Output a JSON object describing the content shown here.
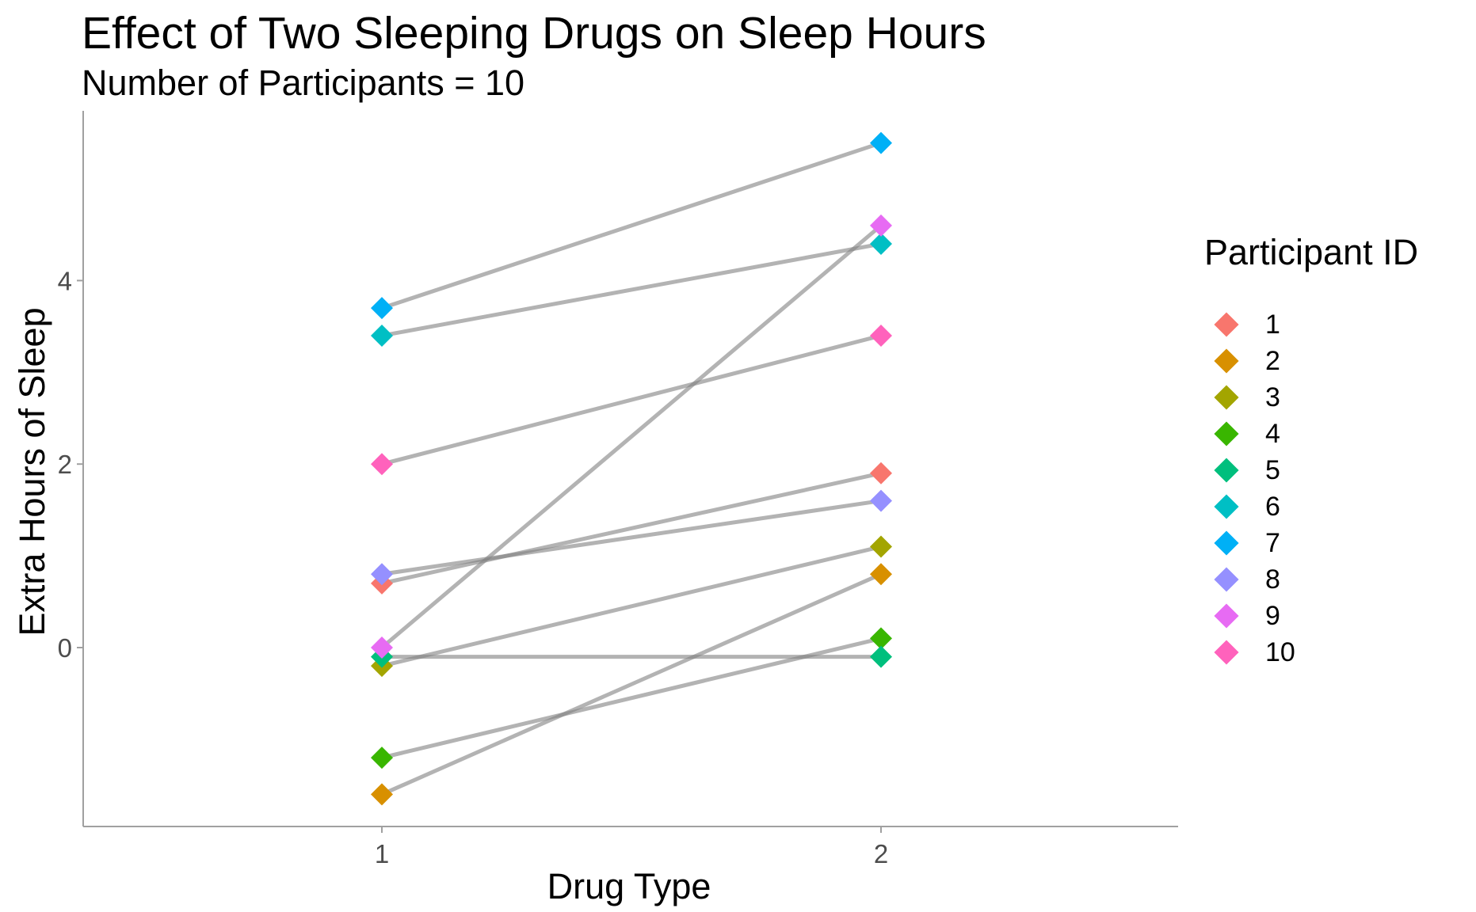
{
  "chart_data": {
    "type": "line",
    "title": "Effect of Two Sleeping Drugs on Sleep Hours",
    "subtitle": "Number of Participants = 10",
    "xlabel": "Drug Type",
    "ylabel": "Extra Hours of Sleep",
    "categories": [
      "1",
      "2"
    ],
    "ylim": [
      -1.95,
      5.85
    ],
    "yticks": [
      0,
      2,
      4
    ],
    "legend_title": "Participant ID",
    "legend_position": "right",
    "grid": false,
    "series": [
      {
        "name": "1",
        "color": "#F8766D",
        "values": [
          0.7,
          1.9
        ]
      },
      {
        "name": "2",
        "color": "#D89000",
        "values": [
          -1.6,
          0.8
        ]
      },
      {
        "name": "3",
        "color": "#A3A500",
        "values": [
          -0.2,
          1.1
        ]
      },
      {
        "name": "4",
        "color": "#39B600",
        "values": [
          -1.2,
          0.1
        ]
      },
      {
        "name": "5",
        "color": "#00BF7D",
        "values": [
          -0.1,
          -0.1
        ]
      },
      {
        "name": "6",
        "color": "#00BFC4",
        "values": [
          3.4,
          4.4
        ]
      },
      {
        "name": "7",
        "color": "#00B0F6",
        "values": [
          3.7,
          5.5
        ]
      },
      {
        "name": "8",
        "color": "#9590FF",
        "values": [
          0.8,
          1.6
        ]
      },
      {
        "name": "9",
        "color": "#E76BF3",
        "values": [
          0.0,
          4.6
        ]
      },
      {
        "name": "10",
        "color": "#FF62BC",
        "values": [
          2.0,
          3.4
        ]
      }
    ],
    "line_color": "#808080"
  }
}
